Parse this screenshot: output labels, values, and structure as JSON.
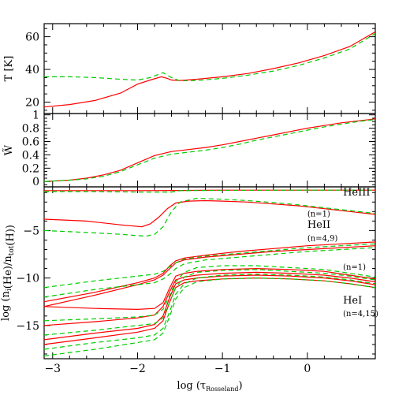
{
  "chart_data": {
    "type": "line",
    "shared_x": {
      "label": "log (τ",
      "label_sub": "Rosseland",
      "label_close": ")",
      "lim": [
        -3.1,
        0.8
      ],
      "ticks": [
        -3,
        -2,
        -1,
        0
      ],
      "tick_labels": [
        "−3",
        "−2",
        "−1",
        "0"
      ]
    },
    "line_styles": {
      "red": {
        "color": "#ff0000",
        "dash": "solid"
      },
      "green": {
        "color": "#00cc00",
        "dash": "dashed"
      }
    },
    "panels": [
      {
        "id": "temperature",
        "ylabel": "T [K]",
        "ylim": [
          13,
          68
        ],
        "yticks": [
          20,
          40,
          60
        ],
        "ytick_labels": [
          "20",
          "40",
          "60"
        ],
        "series": [
          {
            "style": "red",
            "x": [
              -3.1,
              -2.8,
              -2.5,
              -2.2,
              -2.0,
              -1.85,
              -1.72,
              -1.65,
              -1.6,
              -1.5,
              -1.3,
              -1.0,
              -0.7,
              -0.4,
              -0.1,
              0.2,
              0.5,
              0.8
            ],
            "y": [
              17,
              18.5,
              21,
              25.5,
              31,
              33.5,
              35.5,
              34.5,
              33.5,
              33.2,
              34,
              35.5,
              37.5,
              40.5,
              44,
              48.5,
              54,
              63
            ]
          },
          {
            "style": "green",
            "x": [
              -3.1,
              -2.8,
              -2.5,
              -2.2,
              -2.0,
              -1.85,
              -1.7,
              -1.6,
              -1.5,
              -1.3,
              -1.0,
              -0.7,
              -0.4,
              -0.1,
              0.2,
              0.5,
              0.8
            ],
            "y": [
              35.5,
              35.5,
              35,
              34,
              33.5,
              35,
              38,
              35,
              33,
              33.2,
              34.5,
              36.5,
              39,
              42.5,
              47,
              52.5,
              62
            ]
          }
        ]
      },
      {
        "id": "w",
        "ylabel": "W̃",
        "ylim": [
          -0.08,
          1.02
        ],
        "yticks": [
          0,
          0.2,
          0.4,
          0.6,
          0.8,
          1
        ],
        "ytick_labels": [
          "0",
          "0.2",
          "0.4",
          "0.6",
          "0.8",
          "1"
        ],
        "series": [
          {
            "style": "red",
            "x": [
              -3.1,
              -2.8,
              -2.6,
              -2.4,
              -2.2,
              -2.0,
              -1.8,
              -1.6,
              -1.4,
              -1.2,
              -1.0,
              -0.8,
              -0.6,
              -0.4,
              -0.2,
              0.0,
              0.2,
              0.4,
              0.6,
              0.8
            ],
            "y": [
              0.0,
              0.02,
              0.05,
              0.1,
              0.17,
              0.28,
              0.39,
              0.45,
              0.48,
              0.51,
              0.55,
              0.6,
              0.65,
              0.7,
              0.75,
              0.8,
              0.84,
              0.88,
              0.91,
              0.94
            ]
          },
          {
            "style": "green",
            "x": [
              -3.1,
              -2.8,
              -2.6,
              -2.4,
              -2.2,
              -2.0,
              -1.8,
              -1.6,
              -1.4,
              -1.2,
              -1.0,
              -0.8,
              -0.6,
              -0.4,
              -0.2,
              0.0,
              0.2,
              0.4,
              0.6,
              0.8
            ],
            "y": [
              0.0,
              0.02,
              0.04,
              0.08,
              0.15,
              0.25,
              0.35,
              0.41,
              0.44,
              0.47,
              0.51,
              0.56,
              0.62,
              0.67,
              0.72,
              0.77,
              0.82,
              0.86,
              0.9,
              0.93
            ]
          }
        ]
      },
      {
        "id": "populations",
        "ylabel": "log (n",
        "ylabel_sub_i": "i",
        "ylabel_mid": "(He)/n",
        "ylabel_sub_tot": "tot",
        "ylabel_end": "(H))",
        "ylim": [
          -18.5,
          -0.4
        ],
        "yticks": [
          -5,
          -10,
          -15
        ],
        "ytick_labels": [
          "−5",
          "−10",
          "−15"
        ],
        "annotations": [
          {
            "text": "HeIII",
            "x": 0.42,
            "y": -1.3,
            "size": "lab"
          },
          {
            "text": "(n=1)",
            "x": 0.0,
            "y": -3.5,
            "size": "ann"
          },
          {
            "text": "HeII",
            "x": 0.0,
            "y": -4.7,
            "size": "lab"
          },
          {
            "text": "(n=4,9)",
            "x": 0.0,
            "y": -6.1,
            "size": "ann"
          },
          {
            "text": "(n=1)",
            "x": 0.42,
            "y": -9.1,
            "size": "ann"
          },
          {
            "text": "HeI",
            "x": 0.42,
            "y": -12.7,
            "size": "lab"
          },
          {
            "text": "(n=4,15)",
            "x": 0.42,
            "y": -14.0,
            "size": "ann"
          }
        ],
        "series": [
          {
            "style": "red",
            "x": [
              -3.1,
              -2.5,
              -2.0,
              -1.5,
              -1.0,
              -0.5,
              0.0,
              0.5,
              0.8
            ],
            "y": [
              -0.8,
              -0.8,
              -0.8,
              -0.78,
              -0.75,
              -0.75,
              -0.75,
              -0.75,
              -0.75
            ]
          },
          {
            "style": "green",
            "x": [
              -3.1,
              -2.5,
              -2.0,
              -1.6,
              -1.5,
              -1.0,
              -0.5,
              0.0,
              0.5,
              0.8
            ],
            "y": [
              -0.9,
              -0.9,
              -0.95,
              -0.95,
              -0.8,
              -0.77,
              -0.76,
              -0.75,
              -0.75,
              -0.75
            ]
          },
          {
            "style": "red",
            "x": [
              -3.1,
              -2.6,
              -2.2,
              -1.95,
              -1.85,
              -1.75,
              -1.65,
              -1.55,
              -1.4,
              -1.2,
              -1.0,
              -0.7,
              -0.4,
              -0.1,
              0.2,
              0.5,
              0.8
            ],
            "y": [
              -3.8,
              -4.0,
              -4.4,
              -4.6,
              -4.3,
              -3.6,
              -2.7,
              -2.1,
              -1.9,
              -1.85,
              -1.9,
              -2.0,
              -2.2,
              -2.4,
              -2.7,
              -3.0,
              -3.3
            ]
          },
          {
            "style": "green",
            "x": [
              -3.1,
              -2.6,
              -2.2,
              -1.9,
              -1.8,
              -1.7,
              -1.6,
              -1.5,
              -1.3,
              -1.0,
              -0.7,
              -0.4,
              -0.1,
              0.2,
              0.5,
              0.8
            ],
            "y": [
              -5.0,
              -5.2,
              -5.4,
              -5.6,
              -5.4,
              -4.6,
              -3.0,
              -2.0,
              -1.6,
              -1.7,
              -1.85,
              -2.05,
              -2.3,
              -2.6,
              -2.9,
              -3.2
            ]
          },
          {
            "style": "red",
            "x": [
              -3.1,
              -2.5,
              -2.0,
              -1.8,
              -1.7,
              -1.62,
              -1.55,
              -1.45,
              -1.2,
              -0.8,
              -0.4,
              0.0,
              0.4,
              0.8
            ],
            "y": [
              -12.5,
              -11.5,
              -10.5,
              -10.0,
              -9.5,
              -8.7,
              -8.2,
              -7.9,
              -7.6,
              -7.2,
              -6.9,
              -6.6,
              -6.4,
              -6.2
            ]
          },
          {
            "style": "red",
            "x": [
              -3.1,
              -2.5,
              -2.0,
              -1.8,
              -1.7,
              -1.62,
              -1.55,
              -1.45,
              -1.2,
              -0.8,
              -0.4,
              0.0,
              0.4,
              0.8
            ],
            "y": [
              -13.0,
              -11.8,
              -10.7,
              -10.2,
              -9.7,
              -9.0,
              -8.4,
              -8.1,
              -7.8,
              -7.5,
              -7.2,
              -7.0,
              -6.8,
              -6.6
            ]
          },
          {
            "style": "green",
            "x": [
              -3.1,
              -2.5,
              -2.0,
              -1.8,
              -1.7,
              -1.62,
              -1.55,
              -1.45,
              -1.2,
              -0.8,
              -0.4,
              0.0,
              0.4,
              0.8
            ],
            "y": [
              -11.0,
              -10.3,
              -9.8,
              -9.6,
              -9.3,
              -8.8,
              -8.4,
              -8.0,
              -7.7,
              -7.4,
              -7.1,
              -6.8,
              -6.6,
              -6.4
            ]
          },
          {
            "style": "green",
            "x": [
              -3.1,
              -2.5,
              -2.0,
              -1.8,
              -1.7,
              -1.62,
              -1.55,
              -1.45,
              -1.2,
              -0.8,
              -0.4,
              0.0,
              0.4,
              0.8
            ],
            "y": [
              -12.0,
              -11.2,
              -10.7,
              -10.5,
              -10.1,
              -9.6,
              -9.0,
              -8.5,
              -8.1,
              -7.8,
              -7.5,
              -7.2,
              -7.0,
              -6.8
            ]
          },
          {
            "style": "red",
            "x": [
              -3.1,
              -2.5,
              -2.0,
              -1.8,
              -1.7,
              -1.62,
              -1.55,
              -1.45,
              -1.3,
              -1.0,
              -0.6,
              -0.2,
              0.2,
              0.5,
              0.8
            ],
            "y": [
              -13.0,
              -13.2,
              -13.3,
              -13.2,
              -12.6,
              -11.0,
              -9.8,
              -9.5,
              -9.3,
              -9.1,
              -9.0,
              -9.1,
              -9.3,
              -9.7,
              -10.1
            ]
          },
          {
            "style": "red",
            "x": [
              -3.1,
              -2.5,
              -2.0,
              -1.8,
              -1.7,
              -1.62,
              -1.55,
              -1.45,
              -1.3,
              -1.0,
              -0.6,
              -0.2,
              0.2,
              0.5,
              0.8
            ],
            "y": [
              -15.0,
              -14.6,
              -14.2,
              -13.9,
              -13.0,
              -11.4,
              -10.2,
              -9.9,
              -9.7,
              -9.5,
              -9.4,
              -9.5,
              -9.7,
              -10.0,
              -10.4
            ]
          },
          {
            "style": "red",
            "x": [
              -3.1,
              -2.5,
              -2.0,
              -1.8,
              -1.7,
              -1.62,
              -1.55,
              -1.45,
              -1.3,
              -1.0,
              -0.6,
              -0.2,
              0.2,
              0.5,
              0.8
            ],
            "y": [
              -16.5,
              -15.8,
              -15.3,
              -14.9,
              -14.0,
              -12.0,
              -10.6,
              -10.2,
              -10.0,
              -9.8,
              -9.7,
              -9.8,
              -10.0,
              -10.3,
              -10.7
            ]
          },
          {
            "style": "red",
            "x": [
              -3.1,
              -2.5,
              -2.0,
              -1.8,
              -1.7,
              -1.62,
              -1.55,
              -1.45,
              -1.3,
              -1.0,
              -0.6,
              -0.2,
              0.2,
              0.5,
              0.8
            ],
            "y": [
              -17.0,
              -16.3,
              -15.7,
              -15.3,
              -14.5,
              -12.5,
              -11.0,
              -10.5,
              -10.3,
              -10.1,
              -10.0,
              -10.1,
              -10.3,
              -10.6,
              -11.0
            ]
          },
          {
            "style": "green",
            "x": [
              -3.1,
              -2.5,
              -2.0,
              -1.8,
              -1.7,
              -1.62,
              -1.55,
              -1.45,
              -1.3,
              -1.0,
              -0.6,
              -0.2,
              0.2,
              0.5,
              0.8
            ],
            "y": [
              -14.5,
              -14.3,
              -14.1,
              -13.9,
              -13.3,
              -11.8,
              -10.4,
              -9.4,
              -8.9,
              -8.7,
              -8.7,
              -8.9,
              -9.1,
              -9.5,
              -9.9
            ]
          },
          {
            "style": "green",
            "x": [
              -3.1,
              -2.5,
              -2.0,
              -1.8,
              -1.7,
              -1.62,
              -1.55,
              -1.45,
              -1.3,
              -1.0,
              -0.6,
              -0.2,
              0.2,
              0.5,
              0.8
            ],
            "y": [
              -16.0,
              -15.5,
              -15.0,
              -14.8,
              -14.2,
              -12.5,
              -11.0,
              -9.9,
              -9.4,
              -9.2,
              -9.1,
              -9.3,
              -9.5,
              -9.8,
              -10.2
            ]
          },
          {
            "style": "green",
            "x": [
              -3.1,
              -2.5,
              -2.0,
              -1.8,
              -1.7,
              -1.62,
              -1.55,
              -1.45,
              -1.3,
              -1.0,
              -0.6,
              -0.2,
              0.2,
              0.5,
              0.8
            ],
            "y": [
              -17.5,
              -16.8,
              -16.3,
              -16.0,
              -15.3,
              -13.5,
              -11.7,
              -10.6,
              -10.0,
              -9.7,
              -9.6,
              -9.7,
              -9.9,
              -10.2,
              -10.6
            ]
          },
          {
            "style": "green",
            "x": [
              -3.1,
              -2.5,
              -2.0,
              -1.8,
              -1.7,
              -1.62,
              -1.55,
              -1.45,
              -1.3,
              -1.0,
              -0.6,
              -0.2,
              0.2,
              0.5,
              0.8
            ],
            "y": [
              -18.2,
              -17.5,
              -16.8,
              -16.5,
              -15.8,
              -14.0,
              -12.2,
              -11.0,
              -10.4,
              -10.1,
              -10.0,
              -10.1,
              -10.3,
              -10.6,
              -11.0
            ]
          }
        ]
      }
    ]
  }
}
